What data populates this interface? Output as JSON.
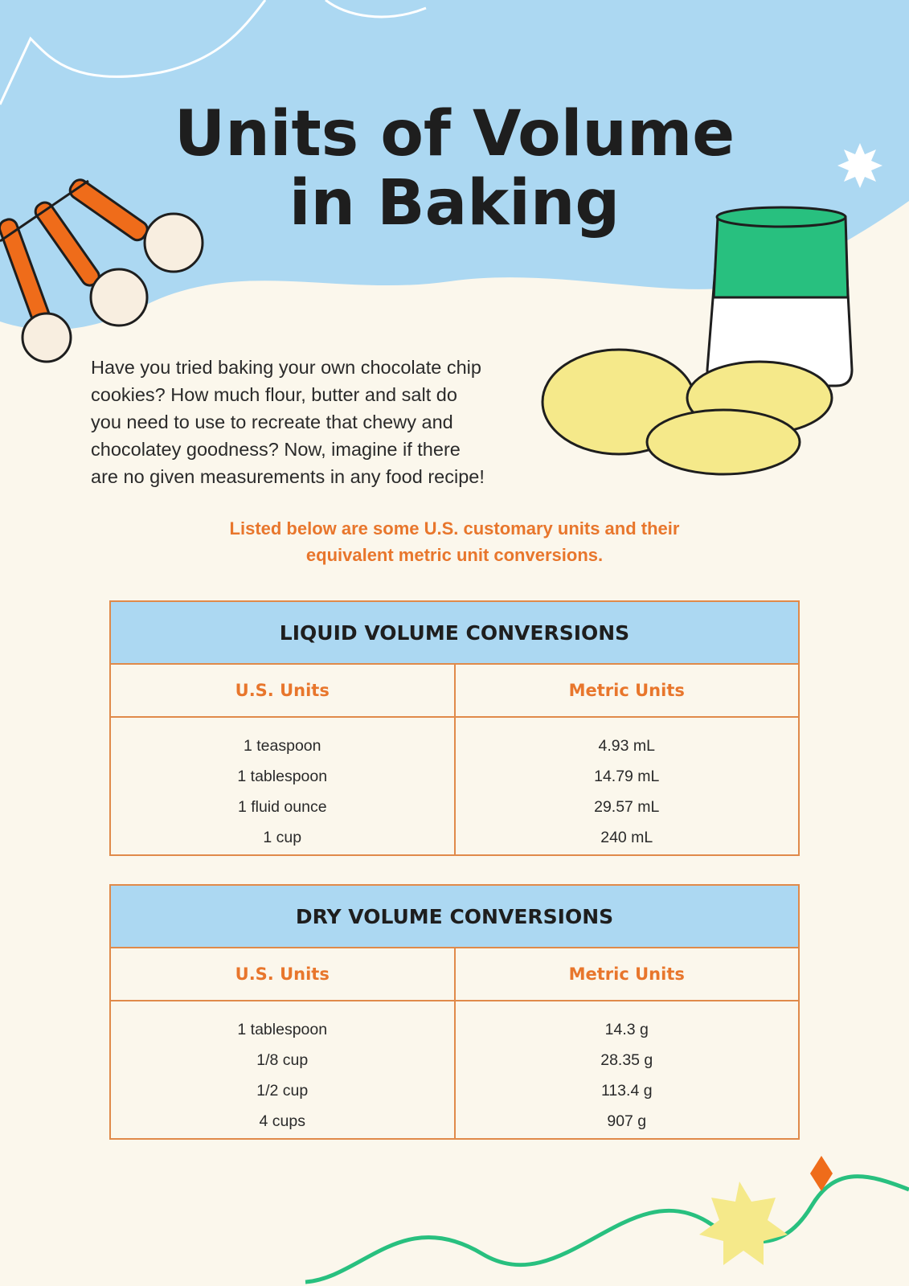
{
  "header": {
    "title_lines": [
      "Units of Volume",
      "in Baking"
    ]
  },
  "intro": {
    "lines": [
      "Have you tried baking your own chocolate chip",
      "cookies? How much flour, butter and salt do",
      "you need to use to recreate that chewy and",
      "chocolatey goodness? Now, imagine if there",
      "are no given measurements in any food recipe!"
    ]
  },
  "note": {
    "lines": [
      "Listed below are some U.S. customary units and their",
      "equivalent metric unit conversions."
    ]
  },
  "tables": [
    {
      "title": "LIQUID VOLUME CONVERSIONS",
      "columns": [
        "U.S. Units",
        "Metric Units"
      ],
      "rows": [
        [
          "1 teaspoon",
          "4.93 mL"
        ],
        [
          "1 tablespoon",
          "14.79 mL"
        ],
        [
          "1 fluid ounce",
          "29.57 mL"
        ],
        [
          "1 cup",
          "240 mL"
        ]
      ]
    },
    {
      "title": "DRY VOLUME CONVERSIONS",
      "columns": [
        "U.S. Units",
        "Metric Units"
      ],
      "rows": [
        [
          "1 tablespoon",
          "14.3 g"
        ],
        [
          "1/8 cup",
          "28.35 g"
        ],
        [
          "1/2 cup",
          "113.4 g"
        ],
        [
          "4 cups",
          "907 g"
        ]
      ]
    }
  ]
}
